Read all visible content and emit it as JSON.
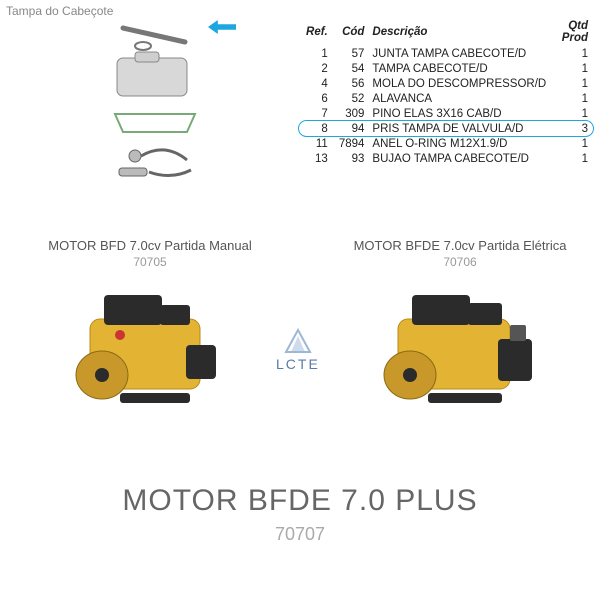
{
  "header": {
    "title": "Tampa do Cabeçote"
  },
  "table": {
    "columns": [
      "Ref.",
      "Cód",
      "Descrição",
      "Qtd Prod"
    ],
    "rows": [
      {
        "ref": "1",
        "cod": "57",
        "desc": "JUNTA TAMPA CABECOTE/D",
        "qty": "1"
      },
      {
        "ref": "2",
        "cod": "54",
        "desc": "TAMPA CABECOTE/D",
        "qty": "1"
      },
      {
        "ref": "4",
        "cod": "56",
        "desc": "MOLA DO DESCOMPRESSOR/D",
        "qty": "1"
      },
      {
        "ref": "6",
        "cod": "52",
        "desc": "ALAVANCA",
        "qty": "1"
      },
      {
        "ref": "7",
        "cod": "309",
        "desc": "PINO ELAS 3X16 CAB/D",
        "qty": "1"
      },
      {
        "ref": "8",
        "cod": "94",
        "desc": "PRIS TAMPA DE VALVULA/D",
        "qty": "3",
        "highlight": true
      },
      {
        "ref": "11",
        "cod": "7894",
        "desc": "ANEL O-RING M12X1.9/D",
        "qty": "1"
      },
      {
        "ref": "13",
        "cod": "93",
        "desc": "BUJAO TAMPA CABECOTE/D",
        "qty": "1"
      }
    ],
    "highlight_color": "#1ea6e0"
  },
  "engines": {
    "left": {
      "title": "MOTOR BFD 7.0cv Partida Manual",
      "code": "70705"
    },
    "right": {
      "title": "MOTOR BFDE 7.0cv Partida Elétrica",
      "code": "70706"
    }
  },
  "logo": {
    "text": "LCTE"
  },
  "bottom": {
    "title": "MOTOR BFDE  7.0 PLUS",
    "code": "70707"
  },
  "colors": {
    "engine_body": "#e3b433",
    "engine_dark": "#2b2b2b",
    "text_muted": "#888888",
    "accent": "#1ea6e0"
  }
}
